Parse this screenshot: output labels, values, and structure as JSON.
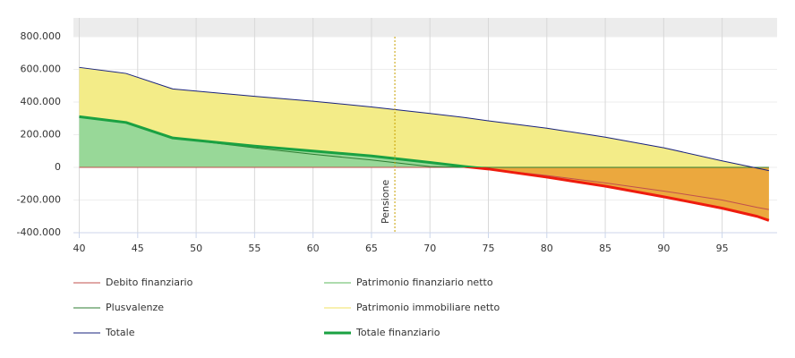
{
  "chart_data": {
    "type": "area",
    "x": [
      40,
      44,
      48,
      55,
      60,
      65,
      70,
      73,
      75,
      80,
      85,
      90,
      95,
      98,
      99
    ],
    "xlim": [
      39.5,
      99.7
    ],
    "xticks": [
      40,
      45,
      50,
      55,
      60,
      65,
      70,
      75,
      80,
      85,
      90,
      95
    ],
    "ylim": [
      -400000,
      800000
    ],
    "yticks": [
      {
        "value": -400000,
        "label": "-400.000"
      },
      {
        "value": -200000,
        "label": "-200.000"
      },
      0,
      {
        "value": 200000,
        "label": "200.000"
      },
      {
        "value": 400000,
        "label": "400.000"
      },
      {
        "value": 600000,
        "label": "600.000"
      },
      {
        "value": 800000,
        "label": "800.000"
      }
    ],
    "grid": true,
    "annotation": {
      "x": 67,
      "label": "Pensione"
    },
    "series": [
      {
        "name": "Debito finanziario",
        "color": "#c0504d",
        "kind": "line",
        "width": 1,
        "values": [
          0,
          0,
          0,
          0,
          0,
          0,
          0,
          0,
          -10000,
          -50000,
          -95000,
          -145000,
          -200000,
          -245000,
          -258000
        ]
      },
      {
        "name": "Patrimonio finanziario netto",
        "color": "#5cb85c",
        "kind": "line",
        "width": 1,
        "values": [
          310000,
          275000,
          180000,
          130000,
          100000,
          70000,
          30000,
          5000,
          0,
          0,
          0,
          0,
          0,
          0,
          0
        ]
      },
      {
        "name": "Plusvalenze",
        "color": "#2e7d32",
        "kind": "line",
        "width": 1,
        "values": [
          310000,
          275000,
          180000,
          120000,
          80000,
          45000,
          5000,
          0,
          0,
          0,
          0,
          0,
          0,
          0,
          0
        ]
      },
      {
        "name": "Patrimonio immobiliare netto",
        "color": "#f0e060",
        "kind": "stacked-area",
        "fill": "#f3ec88",
        "values": [
          302000,
          300000,
          300000,
          305000,
          305000,
          300000,
          300000,
          300000,
          295000,
          300000,
          300000,
          300000,
          290000,
          295000,
          305000
        ]
      },
      {
        "name": "Totale",
        "color": "#1a237e",
        "kind": "line",
        "width": 1,
        "values": [
          612000,
          575000,
          480000,
          435000,
          405000,
          370000,
          330000,
          305000,
          285000,
          240000,
          185000,
          120000,
          40000,
          -5000,
          -20000
        ]
      },
      {
        "name": "Totale finanziario",
        "color": "#1aa142",
        "negative_color": "#ee1c0e",
        "fill": "#98d898",
        "negative_fill": "#eba83e",
        "kind": "area",
        "width": 3,
        "values": [
          310000,
          275000,
          180000,
          130000,
          100000,
          70000,
          30000,
          5000,
          -10000,
          -60000,
          -115000,
          -180000,
          -250000,
          -300000,
          -325000
        ]
      }
    ]
  }
}
